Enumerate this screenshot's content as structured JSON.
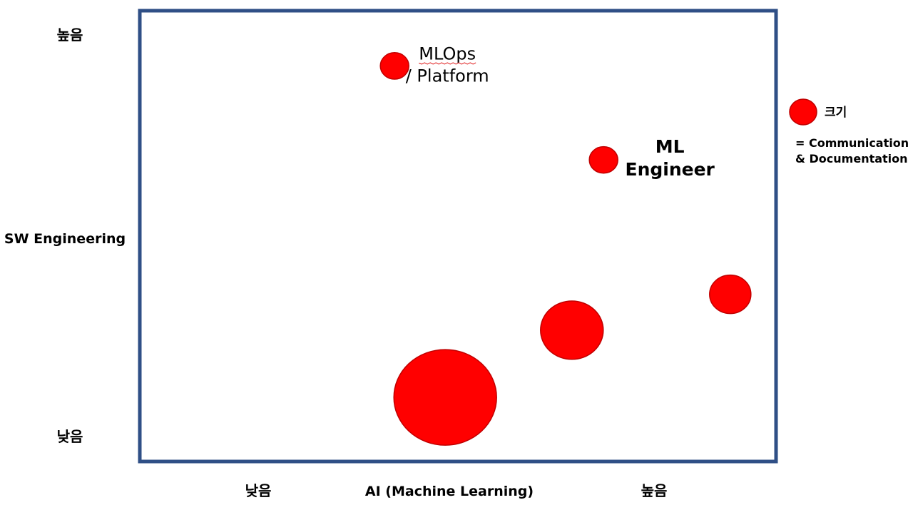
{
  "chart_data": {
    "type": "scatter",
    "title": "",
    "xlabel": "AI (Machine Learning)",
    "ylabel": "SW Engineering",
    "x_ticks": {
      "low": "낮음",
      "high": "높음"
    },
    "y_ticks": {
      "low": "낮음",
      "high": "높음"
    },
    "xlim": [
      0,
      100
    ],
    "ylim": [
      0,
      100
    ],
    "grid": false,
    "size_meaning": "Communication & Documentation",
    "points": [
      {
        "label_lines": [
          "MLOps",
          "/ Platform"
        ],
        "label_style": "normal",
        "x": 40,
        "y": 88,
        "size": 1.0
      },
      {
        "label_lines": [
          "ML",
          "Engineer"
        ],
        "label_style": "bold",
        "x": 73,
        "y": 67,
        "size": 1.0
      },
      {
        "label_lines": [],
        "x": 93,
        "y": 37,
        "size": 1.45
      },
      {
        "label_lines": [],
        "x": 68,
        "y": 29,
        "size": 2.2
      },
      {
        "label_lines": [],
        "x": 48,
        "y": 14,
        "size": 3.6
      }
    ],
    "legend": {
      "position": "right",
      "marker_label": "크기",
      "description_lines": [
        "= Communication",
        "& Documentation"
      ]
    },
    "colors": {
      "bubble": "#ff0000",
      "frame": "#2f4f86"
    }
  }
}
